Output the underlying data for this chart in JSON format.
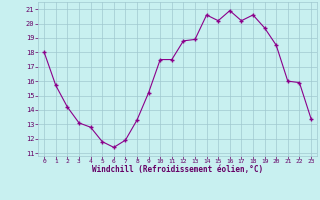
{
  "x": [
    0,
    1,
    2,
    3,
    4,
    5,
    6,
    7,
    8,
    9,
    10,
    11,
    12,
    13,
    14,
    15,
    16,
    17,
    18,
    19,
    20,
    21,
    22,
    23
  ],
  "y": [
    18,
    15.7,
    14.2,
    13.1,
    12.8,
    11.8,
    11.4,
    11.9,
    13.3,
    15.2,
    17.5,
    17.5,
    18.8,
    18.9,
    20.6,
    20.2,
    20.9,
    20.2,
    20.6,
    19.7,
    18.5,
    16.0,
    15.9,
    13.4
  ],
  "line_color": "#8B008B",
  "marker": "+",
  "marker_size": 3,
  "bg_color": "#c8f0f0",
  "grid_color": "#a0c8d0",
  "ylabel_ticks": [
    11,
    12,
    13,
    14,
    15,
    16,
    17,
    18,
    19,
    20,
    21
  ],
  "xlim": [
    -0.5,
    23.5
  ],
  "ylim": [
    10.8,
    21.5
  ],
  "xticks": [
    0,
    1,
    2,
    3,
    4,
    5,
    6,
    7,
    8,
    9,
    10,
    11,
    12,
    13,
    14,
    15,
    16,
    17,
    18,
    19,
    20,
    21,
    22,
    23
  ],
  "xlabel": "Windchill (Refroidissement éolien,°C)",
  "axis_label_color": "#660066",
  "tick_color": "#660066"
}
